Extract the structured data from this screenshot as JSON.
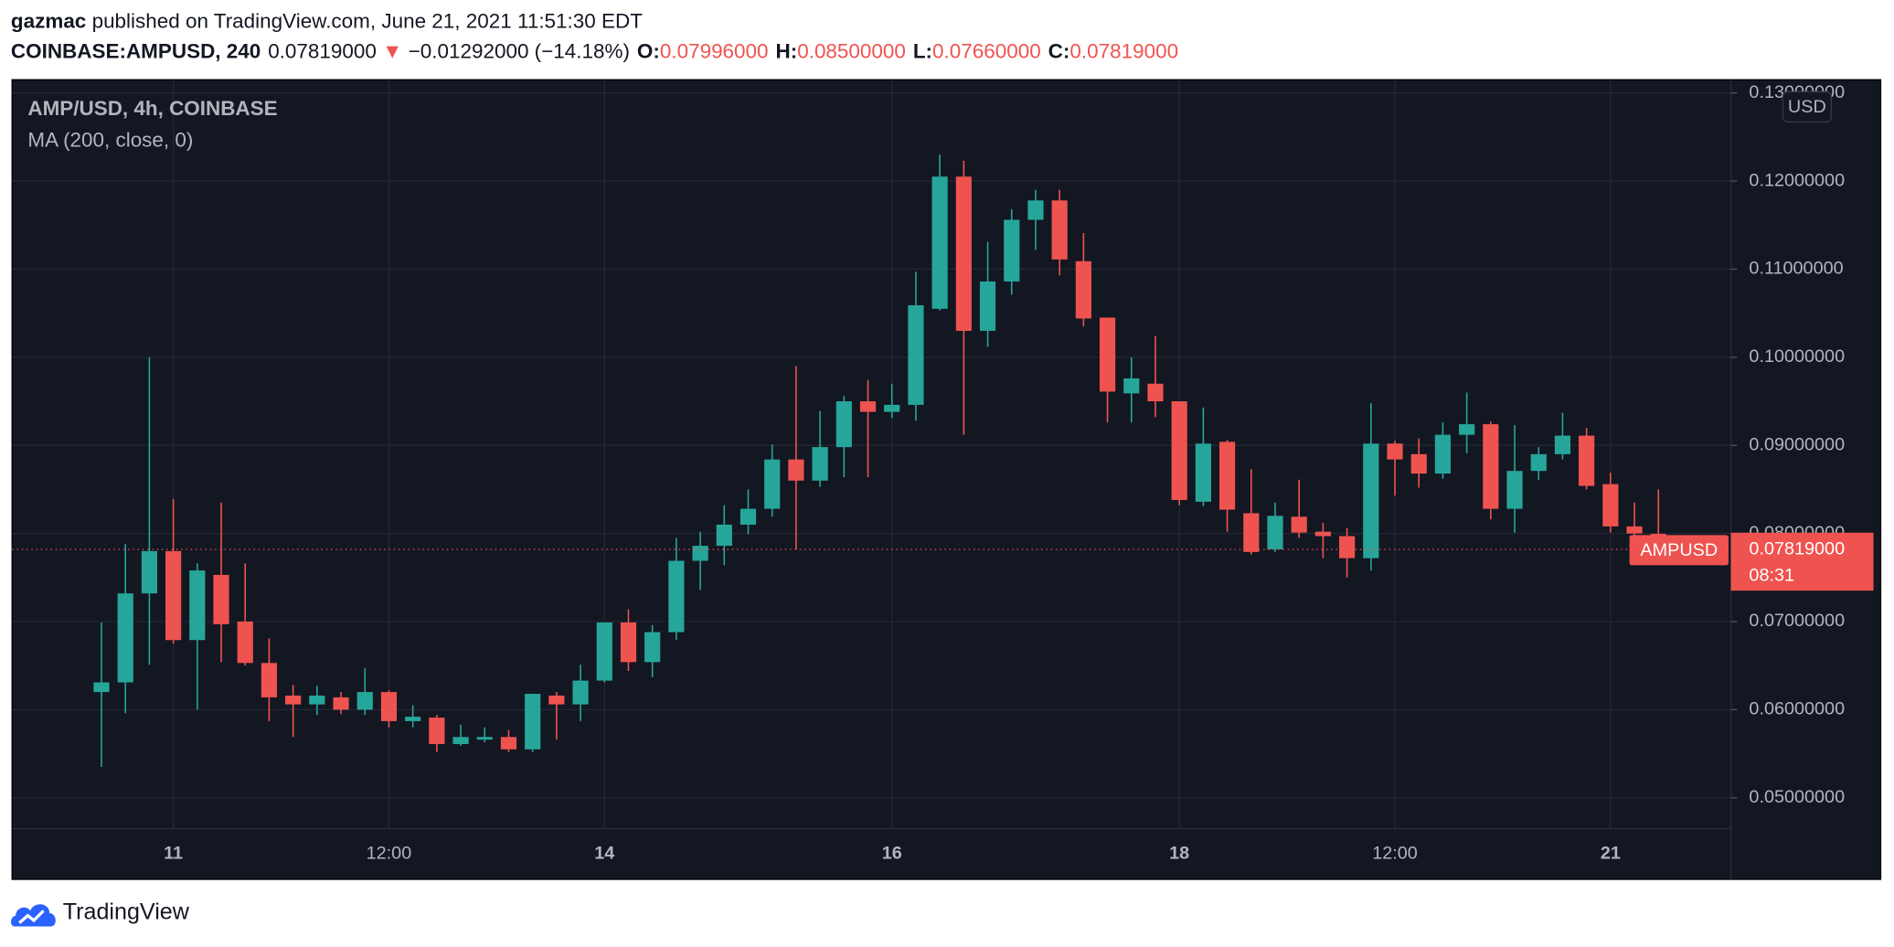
{
  "header": {
    "publisher": "gazmac",
    "published": "published on TradingView.com, June 21, 2021 11:51:30 EDT",
    "symbol": "COINBASE:AMPUSD, 240",
    "last": "0.07819000",
    "arrow": "▼",
    "change": "−0.01292000 (−14.18%)",
    "ohlc": [
      {
        "label": "O:",
        "value": "0.07996000"
      },
      {
        "label": "H:",
        "value": "0.08500000"
      },
      {
        "label": "L:",
        "value": "0.07660000"
      },
      {
        "label": "C:",
        "value": "0.07819000"
      }
    ]
  },
  "chart_data": {
    "type": "candlestick",
    "title": "AMP/USD, 4h, COINBASE",
    "indicator": "MA (200, close, 0)",
    "categories": [
      null,
      null,
      null,
      "11",
      null,
      null,
      null,
      null,
      null,
      null,
      null,
      null,
      "12:00",
      null,
      null,
      null,
      null,
      null,
      null,
      null,
      null,
      "14",
      null,
      null,
      null,
      null,
      null,
      null,
      null,
      null,
      null,
      null,
      null,
      "16",
      null,
      null,
      null,
      null,
      null,
      null,
      null,
      null,
      null,
      null,
      null,
      "18",
      null,
      null,
      null,
      null,
      null,
      null,
      null,
      null,
      "12:00",
      null,
      null,
      null,
      null,
      null,
      null,
      null,
      null,
      "21",
      null,
      null
    ],
    "open": [
      0.062,
      0.0631,
      0.0732,
      0.078,
      0.0679,
      0.0753,
      0.07,
      0.0653,
      0.0616,
      0.0606,
      0.0614,
      0.06,
      0.062,
      0.0587,
      0.0591,
      0.0561,
      0.0566,
      0.0569,
      0.0555,
      0.0616,
      0.0606,
      0.0633,
      0.0699,
      0.0654,
      0.0688,
      0.0769,
      0.0786,
      0.081,
      0.0828,
      0.0884,
      0.086,
      0.0898,
      0.095,
      0.0938,
      0.0946,
      0.1055,
      0.1205,
      0.103,
      0.1086,
      0.1156,
      0.1178,
      0.1109,
      0.1045,
      0.0959,
      0.097,
      0.095,
      0.0836,
      0.0904,
      0.0823,
      0.0782,
      0.0819,
      0.0802,
      0.0797,
      0.0772,
      0.0902,
      0.089,
      0.0868,
      0.0912,
      0.0924,
      0.0828,
      0.0871,
      0.089,
      0.0911,
      0.0856,
      0.0808,
      0.07996
    ],
    "high": [
      0.0699,
      0.0788,
      0.1,
      0.0839,
      0.0766,
      0.0835,
      0.0766,
      0.0681,
      0.0628,
      0.0627,
      0.062,
      0.0647,
      0.0622,
      0.0605,
      0.0594,
      0.0583,
      0.058,
      0.0577,
      0.0618,
      0.062,
      0.0651,
      0.0699,
      0.0714,
      0.0696,
      0.0795,
      0.0802,
      0.0832,
      0.085,
      0.0901,
      0.099,
      0.0939,
      0.0956,
      0.0974,
      0.097,
      0.1097,
      0.123,
      0.1223,
      0.1131,
      0.1168,
      0.119,
      0.119,
      0.1141,
      0.1045,
      0.1,
      0.1024,
      0.095,
      0.0943,
      0.0906,
      0.0873,
      0.0835,
      0.0861,
      0.0812,
      0.0806,
      0.0948,
      0.0905,
      0.0908,
      0.0926,
      0.096,
      0.0927,
      0.0923,
      0.0898,
      0.0937,
      0.092,
      0.0869,
      0.0835,
      0.085
    ],
    "low": [
      0.0535,
      0.0596,
      0.0651,
      0.0675,
      0.06,
      0.0654,
      0.065,
      0.0587,
      0.0569,
      0.0594,
      0.0595,
      0.0594,
      0.058,
      0.058,
      0.0552,
      0.0559,
      0.0563,
      0.0552,
      0.0552,
      0.0566,
      0.0587,
      0.0631,
      0.0644,
      0.0637,
      0.0679,
      0.0736,
      0.0764,
      0.0799,
      0.0819,
      0.0782,
      0.0853,
      0.0864,
      0.0864,
      0.0931,
      0.0928,
      0.1053,
      0.0912,
      0.1012,
      0.1071,
      0.1122,
      0.1093,
      0.1035,
      0.0926,
      0.0926,
      0.0932,
      0.0832,
      0.0831,
      0.0802,
      0.0776,
      0.0779,
      0.0795,
      0.0772,
      0.075,
      0.0758,
      0.0843,
      0.0852,
      0.0862,
      0.0891,
      0.0816,
      0.0801,
      0.0861,
      0.0884,
      0.085,
      0.0801,
      0.0795,
      0.0766
    ],
    "close": [
      0.0631,
      0.0732,
      0.078,
      0.0679,
      0.0758,
      0.0697,
      0.0653,
      0.0614,
      0.0606,
      0.0616,
      0.06,
      0.062,
      0.0587,
      0.0592,
      0.0561,
      0.0569,
      0.0569,
      0.0555,
      0.0618,
      0.0606,
      0.0633,
      0.0699,
      0.0654,
      0.0688,
      0.0769,
      0.0786,
      0.081,
      0.0828,
      0.0884,
      0.086,
      0.0898,
      0.095,
      0.0938,
      0.0946,
      0.1059,
      0.1205,
      0.103,
      0.1086,
      0.1156,
      0.1178,
      0.1111,
      0.1044,
      0.0961,
      0.0976,
      0.095,
      0.0838,
      0.0902,
      0.0827,
      0.0779,
      0.082,
      0.0801,
      0.0797,
      0.0772,
      0.0902,
      0.0884,
      0.0868,
      0.0912,
      0.0924,
      0.0828,
      0.0871,
      0.089,
      0.0911,
      0.0854,
      0.0808,
      0.08,
      0.07819
    ],
    "up_color": "#26a69a",
    "down_color": "#ef5350",
    "ylim": [
      0.0465,
      0.1315
    ],
    "yticks": [
      {
        "value": 0.05,
        "label": "0.05000000"
      },
      {
        "value": 0.06,
        "label": "0.06000000"
      },
      {
        "value": 0.07,
        "label": "0.07000000"
      },
      {
        "value": 0.08,
        "label": "0.08000000"
      },
      {
        "value": 0.09,
        "label": "0.09000000"
      },
      {
        "value": 0.1,
        "label": "0.10000000"
      },
      {
        "value": 0.11,
        "label": "0.11000000"
      },
      {
        "value": 0.12,
        "label": "0.12000000"
      },
      {
        "value": 0.13,
        "label": "0.13000000"
      }
    ],
    "grid": true
  },
  "currency": "USD",
  "price_tag": {
    "symbol": "AMPUSD",
    "countdown": "08:31"
  },
  "footer": {
    "brand": "TradingView"
  }
}
